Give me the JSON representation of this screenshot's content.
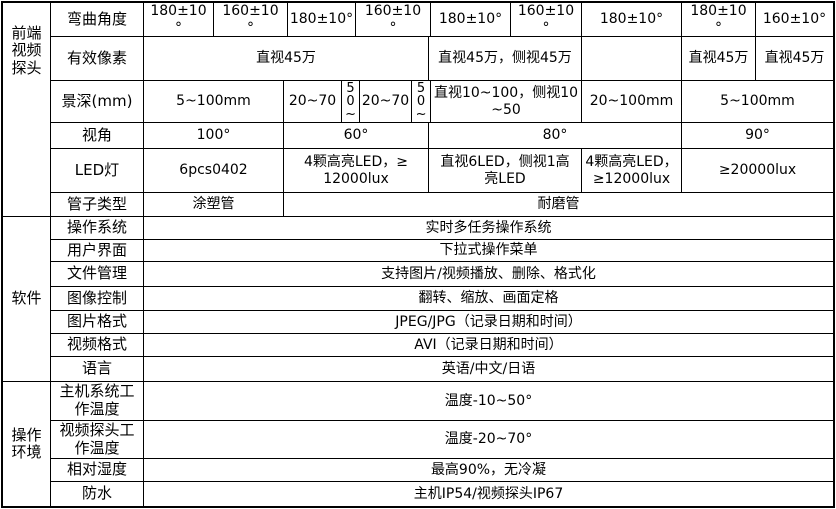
{
  "table": {
    "colors": {
      "border": "#000000",
      "background": "#ffffff",
      "text": "#000000"
    },
    "sections": [
      {
        "group": "前端\n视频\n探头",
        "rows": [
          {
            "label": "弯曲角度",
            "cells": [
              "180±10\n°",
              "160±10\n°",
              "180±10°",
              "160±10\n°",
              "180±10°",
              "160±10\n°",
              "180±10°",
              "180±10\n°",
              "160±10°"
            ]
          },
          {
            "label": "有效像素",
            "cells": [
              "直视45万",
              "直视45万，侧视45万",
              "",
              "直视45万",
              "直视45万"
            ]
          },
          {
            "label": "景深(mm)",
            "cells": [
              "5~100mm",
              "20~70",
              "50~",
              "20~70",
              "50~",
              "直视10~100，侧视10\n~50",
              "20~100mm",
              "5~100mm"
            ]
          },
          {
            "label": "视角",
            "cells": [
              "100°",
              "60°",
              "80°",
              "90°"
            ]
          },
          {
            "label": "LED灯",
            "cells": [
              "6pcs0402",
              "4颗高亮LED，≥\n12000lux",
              "直视6LED，侧视1高\n亮LED",
              "4颗高亮LED，\n≥12000lux",
              "≥20000lux"
            ]
          },
          {
            "label": "管子类型",
            "cells": [
              "涂塑管",
              "耐磨管"
            ]
          }
        ]
      },
      {
        "group": "软件",
        "rows": [
          {
            "label": "操作系统",
            "cells": [
              "实时多任务操作系统"
            ]
          },
          {
            "label": "用户界面",
            "cells": [
              "下拉式操作菜单"
            ]
          },
          {
            "label": "文件管理",
            "cells": [
              "支持图片/视频播放、删除、格式化"
            ]
          },
          {
            "label": "图像控制",
            "cells": [
              "翻转、缩放、画面定格"
            ]
          },
          {
            "label": "图片格式",
            "cells": [
              "JPEG/JPG（记录日期和时间）"
            ]
          },
          {
            "label": "视频格式",
            "cells": [
              "AVI（记录日期和时间）"
            ]
          },
          {
            "label": "语言",
            "cells": [
              "英语/中文/日语"
            ]
          }
        ]
      },
      {
        "group": "操作\n环境",
        "rows": [
          {
            "label": "主机系统工作温度",
            "cells": [
              "温度-10~50°"
            ]
          },
          {
            "label": "视频探头工作温度",
            "cells": [
              "温度-20~70°"
            ]
          },
          {
            "label": "相对湿度",
            "cells": [
              "最高90%，无冷凝"
            ]
          },
          {
            "label": "防水",
            "cells": [
              "主机IP54/视频探头IP67"
            ]
          }
        ]
      }
    ]
  }
}
